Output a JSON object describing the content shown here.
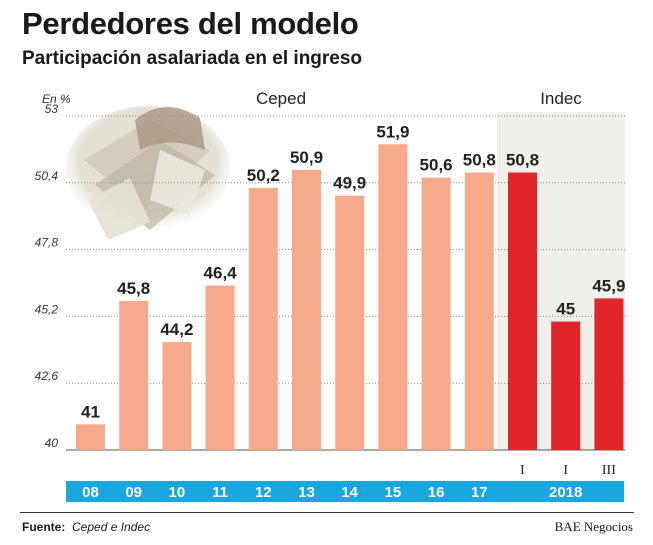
{
  "title": "Perdedores del modelo",
  "subtitle": "Participación asalariada en el ingreso",
  "source_label": "Fuente:",
  "source_text": "Ceped e Indec",
  "credit": "BAE Negocios",
  "colors": {
    "ceped_bar": "#f7a98b",
    "indec_bar": "#e2242b",
    "indec_band": "#f1efe9",
    "axis_band": "#1aa7e0",
    "axis_text": "#ffffff"
  },
  "chart_data": {
    "type": "bar",
    "ylabel": "En %",
    "ylim": [
      40,
      53
    ],
    "yticks": [
      "53",
      "50,4",
      "47,8",
      "45,2",
      "42,6",
      "40"
    ],
    "ytick_values": [
      53,
      50.4,
      47.8,
      45.2,
      42.6,
      40
    ],
    "group_labels": {
      "ceped": "Ceped",
      "indec": "Indec"
    },
    "categories": [
      "08",
      "09",
      "10",
      "11",
      "12",
      "13",
      "14",
      "15",
      "16",
      "17",
      "I",
      "I",
      "III"
    ],
    "year_group_label": "2018",
    "series": [
      {
        "name": "Ceped",
        "points": [
          {
            "category": "08",
            "value": 41,
            "label": "41"
          },
          {
            "category": "09",
            "value": 45.8,
            "label": "45,8"
          },
          {
            "category": "10",
            "value": 44.2,
            "label": "44,2"
          },
          {
            "category": "11",
            "value": 46.4,
            "label": "46,4"
          },
          {
            "category": "12",
            "value": 50.2,
            "label": "50,2"
          },
          {
            "category": "13",
            "value": 50.9,
            "label": "50,9"
          },
          {
            "category": "14",
            "value": 49.9,
            "label": "49,9"
          },
          {
            "category": "15",
            "value": 51.9,
            "label": "51,9"
          },
          {
            "category": "16",
            "value": 50.6,
            "label": "50,6"
          },
          {
            "category": "17",
            "value": 50.8,
            "label": "50,8"
          }
        ]
      },
      {
        "name": "Indec",
        "points": [
          {
            "category": "I",
            "value": 50.8,
            "label": "50,8"
          },
          {
            "category": "I",
            "value": 45,
            "label": "45"
          },
          {
            "category": "III",
            "value": 45.9,
            "label": "45,9"
          }
        ]
      }
    ]
  }
}
